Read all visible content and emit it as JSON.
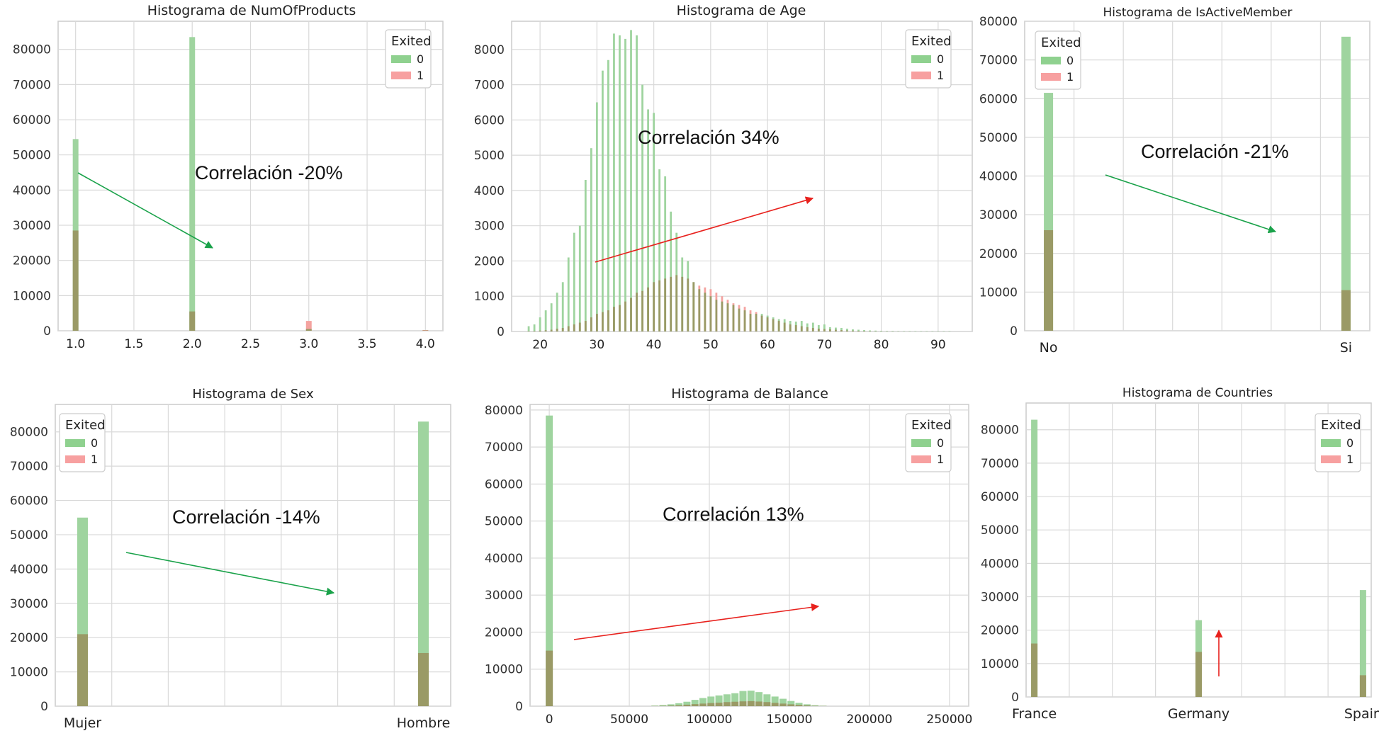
{
  "theme": {
    "green": "#4caf50",
    "red": "#f44336",
    "bar_green_fill": "#9fd49f",
    "bar_overlap_fill": "#9a9a66",
    "grid": "#d9d9d9",
    "axis_text": "#333333",
    "arrow_green": "#1aa24a",
    "arrow_red": "#e8211d"
  },
  "chart_data": [
    {
      "type": "bar",
      "title": "Histograma de NumOfProducts",
      "xlabel": "",
      "ylabel": "",
      "xlim": [
        0.85,
        4.15
      ],
      "ylim": [
        0,
        88000
      ],
      "xticks": [
        "1.0",
        "1.5",
        "2.0",
        "2.5",
        "3.0",
        "3.5",
        "4.0"
      ],
      "xtick_values": [
        1.0,
        1.5,
        2.0,
        2.5,
        3.0,
        3.5,
        4.0
      ],
      "yticks": [
        0,
        10000,
        20000,
        30000,
        40000,
        50000,
        60000,
        70000,
        80000
      ],
      "legend": {
        "title": "Exited",
        "placement": "top-right"
      },
      "series": [
        {
          "name": "0",
          "x": [
            1.0,
            2.0,
            3.0,
            4.0
          ],
          "values": [
            54500,
            83500,
            500,
            100
          ]
        },
        {
          "name": "1",
          "x": [
            1.0,
            2.0,
            3.0,
            4.0
          ],
          "values": [
            28500,
            5500,
            2800,
            200
          ]
        }
      ],
      "annotation": "Correlación -20%",
      "arrow": {
        "direction": "down",
        "color": "green"
      }
    },
    {
      "type": "bar",
      "title": "Histograma de Age",
      "xlabel": "",
      "ylabel": "",
      "xlim": [
        15,
        96
      ],
      "ylim": [
        0,
        8800
      ],
      "xticks": [
        "20",
        "30",
        "40",
        "50",
        "60",
        "70",
        "80",
        "90"
      ],
      "xtick_values": [
        20,
        30,
        40,
        50,
        60,
        70,
        80,
        90
      ],
      "yticks": [
        0,
        1000,
        2000,
        3000,
        4000,
        5000,
        6000,
        7000,
        8000
      ],
      "legend": {
        "title": "Exited",
        "placement": "top-right"
      },
      "series": [
        {
          "name": "0",
          "x": [
            18,
            19,
            20,
            21,
            22,
            23,
            24,
            25,
            26,
            27,
            28,
            29,
            30,
            31,
            32,
            33,
            34,
            35,
            36,
            37,
            38,
            39,
            40,
            41,
            42,
            43,
            44,
            45,
            46,
            47,
            48,
            49,
            50,
            51,
            52,
            53,
            54,
            55,
            56,
            57,
            58,
            59,
            60,
            61,
            62,
            63,
            64,
            65,
            66,
            67,
            68,
            69,
            70,
            71,
            72,
            73,
            74,
            75,
            76,
            77,
            78,
            79,
            80,
            81,
            82,
            83,
            84,
            85,
            86,
            87,
            88,
            89,
            90,
            91,
            92
          ],
          "values": [
            150,
            200,
            400,
            600,
            800,
            1100,
            1400,
            2100,
            2800,
            3000,
            4300,
            5200,
            6500,
            7400,
            7700,
            8450,
            8400,
            8300,
            8550,
            8400,
            7000,
            6300,
            6200,
            4600,
            4400,
            3400,
            2800,
            2100,
            2000,
            1400,
            1200,
            1100,
            1000,
            900,
            850,
            800,
            750,
            650,
            600,
            500,
            500,
            500,
            450,
            400,
            350,
            350,
            300,
            280,
            300,
            230,
            250,
            180,
            200,
            120,
            110,
            100,
            80,
            60,
            50,
            40,
            30,
            25,
            20,
            15,
            15,
            10,
            10,
            10,
            10,
            10,
            10,
            10,
            10,
            10,
            10
          ]
        },
        {
          "name": "1",
          "x": [
            18,
            19,
            20,
            21,
            22,
            23,
            24,
            25,
            26,
            27,
            28,
            29,
            30,
            31,
            32,
            33,
            34,
            35,
            36,
            37,
            38,
            39,
            40,
            41,
            42,
            43,
            44,
            45,
            46,
            47,
            48,
            49,
            50,
            51,
            52,
            53,
            54,
            55,
            56,
            57,
            58,
            59,
            60,
            61,
            62,
            63,
            64,
            65,
            66,
            67,
            68,
            69,
            70,
            71,
            72,
            73,
            74,
            75,
            76,
            77,
            78,
            79,
            80,
            81,
            82,
            83,
            84,
            85,
            86,
            87,
            88,
            89,
            90,
            91,
            92
          ],
          "values": [
            10,
            15,
            25,
            35,
            50,
            80,
            100,
            150,
            200,
            250,
            300,
            400,
            500,
            550,
            600,
            700,
            750,
            850,
            950,
            1100,
            1150,
            1250,
            1400,
            1450,
            1500,
            1550,
            1600,
            1550,
            1500,
            1400,
            1300,
            1250,
            1200,
            1100,
            1000,
            900,
            800,
            750,
            700,
            600,
            550,
            450,
            400,
            350,
            300,
            250,
            200,
            180,
            150,
            120,
            100,
            80,
            70,
            60,
            50,
            40,
            30,
            25,
            20,
            15,
            10,
            8,
            6,
            5,
            4,
            3,
            2,
            2,
            1,
            1,
            1,
            1,
            1,
            1,
            1
          ]
        }
      ],
      "annotation": "Correlación 34%",
      "arrow": {
        "direction": "up",
        "color": "red"
      }
    },
    {
      "type": "bar",
      "title": "Histograma de IsActiveMember",
      "xlabel": "",
      "ylabel": "",
      "xlim": [
        -0.08,
        1.08
      ],
      "ylim": [
        0,
        80000
      ],
      "xticks": [
        "No",
        "Si"
      ],
      "xtick_values": [
        0,
        1
      ],
      "yticks": [
        0,
        10000,
        20000,
        30000,
        40000,
        50000,
        60000,
        70000,
        80000
      ],
      "legend": {
        "title": "Exited",
        "placement": "top-left"
      },
      "series": [
        {
          "name": "0",
          "x": [
            0,
            1
          ],
          "values": [
            61500,
            76000
          ]
        },
        {
          "name": "1",
          "x": [
            0,
            1
          ],
          "values": [
            26000,
            10500
          ]
        }
      ],
      "annotation": "Correlación -21%",
      "arrow": {
        "direction": "down",
        "color": "green"
      }
    },
    {
      "type": "bar",
      "title": "Histograma de Sex",
      "xlabel": "",
      "ylabel": "",
      "xlim": [
        -0.08,
        1.08
      ],
      "ylim": [
        0,
        88000
      ],
      "xticks": [
        "Mujer",
        "Hombre"
      ],
      "xtick_values": [
        0,
        1
      ],
      "yticks": [
        0,
        10000,
        20000,
        30000,
        40000,
        50000,
        60000,
        70000,
        80000
      ],
      "legend": {
        "title": "Exited",
        "placement": "top-left"
      },
      "series": [
        {
          "name": "0",
          "x": [
            0,
            1
          ],
          "values": [
            55000,
            83000
          ]
        },
        {
          "name": "1",
          "x": [
            0,
            1
          ],
          "values": [
            21000,
            15500
          ]
        }
      ],
      "annotation": "Correlación -14%",
      "arrow": {
        "direction": "down",
        "color": "green"
      }
    },
    {
      "type": "bar",
      "title": "Histograma de Balance",
      "xlabel": "",
      "ylabel": "",
      "xlim": [
        -12000,
        262000
      ],
      "ylim": [
        0,
        81500
      ],
      "xticks": [
        "0",
        "50000",
        "100000",
        "150000",
        "200000",
        "250000"
      ],
      "xtick_values": [
        0,
        50000,
        100000,
        150000,
        200000,
        250000
      ],
      "yticks": [
        0,
        10000,
        20000,
        30000,
        40000,
        50000,
        60000,
        70000,
        80000
      ],
      "legend": {
        "title": "Exited",
        "placement": "top-right"
      },
      "series": [
        {
          "name": "0",
          "x": [
            0,
            66000,
            71000,
            76000,
            81000,
            86000,
            91000,
            96000,
            101000,
            106000,
            111000,
            116000,
            121000,
            126000,
            131000,
            136000,
            141000,
            146000,
            151000,
            156000,
            161000,
            166000,
            171000
          ],
          "values": [
            78500,
            150,
            300,
            500,
            800,
            1200,
            1700,
            2200,
            2600,
            2900,
            3200,
            3500,
            4100,
            4200,
            3800,
            3200,
            2600,
            2000,
            1400,
            900,
            500,
            250,
            100
          ]
        },
        {
          "name": "1",
          "x": [
            0,
            66000,
            71000,
            76000,
            81000,
            86000,
            91000,
            96000,
            101000,
            106000,
            111000,
            116000,
            121000,
            126000,
            131000,
            136000,
            141000,
            146000,
            151000,
            156000,
            161000,
            166000,
            171000
          ],
          "values": [
            15000,
            50,
            100,
            150,
            250,
            400,
            550,
            700,
            850,
            950,
            1100,
            1200,
            1300,
            1350,
            1250,
            1100,
            900,
            700,
            500,
            350,
            200,
            100,
            50
          ]
        }
      ],
      "annotation": "Correlación 13%",
      "arrow": {
        "direction": "up",
        "color": "red"
      }
    },
    {
      "type": "bar",
      "title": "Histograma de Countries",
      "xlabel": "",
      "ylabel": "",
      "xlim": [
        -0.05,
        2.05
      ],
      "ylim": [
        0,
        88000
      ],
      "xticks": [
        "France",
        "Germany",
        "Spain"
      ],
      "xtick_values": [
        0,
        1,
        2
      ],
      "yticks": [
        0,
        10000,
        20000,
        30000,
        40000,
        50000,
        60000,
        70000,
        80000
      ],
      "legend": {
        "title": "Exited",
        "placement": "top-right"
      },
      "series": [
        {
          "name": "0",
          "x": [
            0,
            1,
            2
          ],
          "values": [
            83000,
            23000,
            32000
          ]
        },
        {
          "name": "1",
          "x": [
            0,
            1,
            2
          ],
          "values": [
            16000,
            13500,
            6500
          ]
        }
      ],
      "annotation": "",
      "arrow": {
        "direction": "up",
        "color": "red"
      }
    }
  ]
}
